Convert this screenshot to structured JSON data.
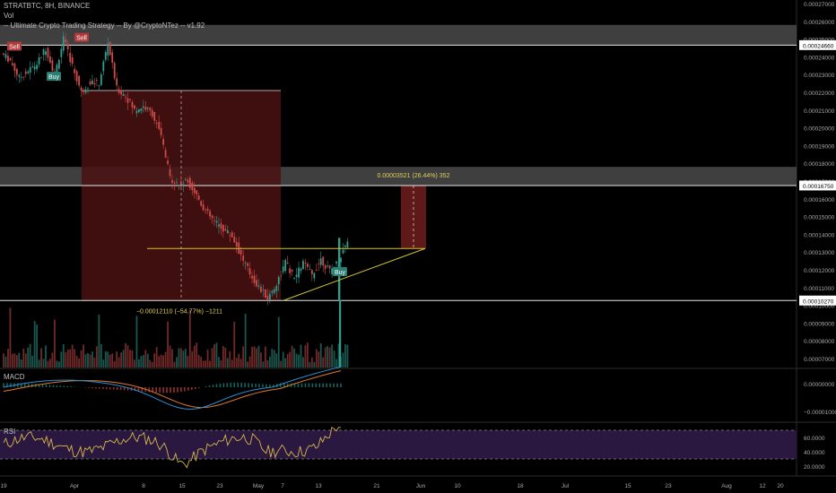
{
  "header": {
    "symbol_line": "STRATBTC, 8H, BINANCE",
    "indicator_vol": "Vol",
    "indicator_strategy": "-- Ultimate Crypto Trading Strategy -- By @CryptoNTez -- v1.92"
  },
  "colors": {
    "background": "#000000",
    "up": "#2f9e8f",
    "down": "#d04a4a",
    "zone": "#4a4a4a",
    "box": "#4a1212",
    "trendline": "#d4c434",
    "macd": "#2a8fd6",
    "signal": "#e07a2a",
    "rsi": "#d6b64a",
    "rsi_band": "#2a1840",
    "axis_text": "#a8a8a8"
  },
  "chart_data": {
    "type": "candlestick",
    "x_ticks": [
      "19",
      "Apr",
      "8",
      "15",
      "23",
      "May",
      "7",
      "13",
      "21",
      "Jun",
      "10",
      "18",
      "Jul",
      "15",
      "23",
      "Aug",
      "12",
      "20"
    ],
    "y_ticks": [
      "0.00027000",
      "0.00026000",
      "0.00025000",
      "0.00024000",
      "0.00023000",
      "0.00022000",
      "0.00021000",
      "0.00020000",
      "0.00019000",
      "0.00018000",
      "0.00017000",
      "0.00016000",
      "0.00015000",
      "0.00014000",
      "0.00013000",
      "0.00012000",
      "0.00011000",
      "0.00010000",
      "0.00009000",
      "0.00008000",
      "0.00007000"
    ],
    "price_labels": [
      "0.00024660",
      "0.00016750",
      "0.00010270"
    ],
    "price_path": [
      [
        0.000242,
        0.000238
      ],
      [
        0.000238,
        0.000228
      ],
      [
        0.000228,
        0.000232
      ],
      [
        0.000232,
        0.000236
      ],
      [
        0.000236,
        0.000245
      ],
      [
        0.000245,
        0.00023
      ],
      [
        0.00023,
        0.00025
      ],
      [
        0.00025,
        0.000235
      ],
      [
        0.000235,
        0.00022
      ],
      [
        0.00022,
        0.000226
      ],
      [
        0.000226,
        0.000225
      ],
      [
        0.000225,
        0.000248
      ],
      [
        0.000248,
        0.000222
      ],
      [
        0.000222,
        0.000218
      ],
      [
        0.000218,
        0.00021
      ],
      [
        0.00021,
        0.000212
      ],
      [
        0.000212,
        0.000208
      ],
      [
        0.000208,
        0.000195
      ],
      [
        0.000195,
        0.000172
      ],
      [
        0.000172,
        0.000168
      ],
      [
        0.000168,
        0.00017
      ],
      [
        0.00017,
        0.000162
      ],
      [
        0.000162,
        0.000153
      ],
      [
        0.000153,
        0.000147
      ],
      [
        0.000147,
        0.000143
      ],
      [
        0.000143,
        0.000139
      ],
      [
        0.000139,
        0.000128
      ],
      [
        0.000128,
        0.000118
      ],
      [
        0.000118,
        0.00011
      ],
      [
        0.00011,
        0.000104
      ],
      [
        0.000104,
        0.000112
      ],
      [
        0.000112,
        0.000124
      ],
      [
        0.000124,
        0.000115
      ],
      [
        0.000115,
        0.000124
      ],
      [
        0.000124,
        0.000117
      ],
      [
        0.000117,
        0.000126
      ],
      [
        0.000126,
        0.000119
      ],
      [
        0.000119,
        0.000125
      ],
      [
        0.000125,
        0.000137
      ]
    ],
    "zones": [
      {
        "from": 0.0002466,
        "to": 0.000258
      },
      {
        "from": 0.0001675,
        "to": 0.000178
      }
    ],
    "horizontal_lines": [
      0.0002466,
      0.0001675,
      0.0001027
    ],
    "trendlines": [
      {
        "from": [
          0.68,
          0.0001027
        ],
        "to": [
          0.5,
          0.000132
        ]
      },
      {
        "from": [
          0.34,
          0.000132
        ],
        "to": [
          0.5,
          0.000132
        ]
      }
    ],
    "measure_down": {
      "label": "−0.00012110 (−54.77%) −1211"
    },
    "measure_up": {
      "label": "0.00003521 (26.44%) 352"
    },
    "signals": [
      {
        "label": "Sell",
        "kind": "sell"
      },
      {
        "label": "Sell",
        "kind": "sell"
      },
      {
        "label": "Buy",
        "kind": "buy"
      },
      {
        "label": "Buy",
        "kind": "buy"
      }
    ],
    "macd": {
      "title": "MACD",
      "y_ticks": [
        "0.00000000",
        "−0.00001000"
      ]
    },
    "rsi": {
      "title": "RSI",
      "y_ticks": [
        "60.0000",
        "40.0000",
        "20.0000"
      ],
      "upper": 70,
      "lower": 30
    }
  }
}
